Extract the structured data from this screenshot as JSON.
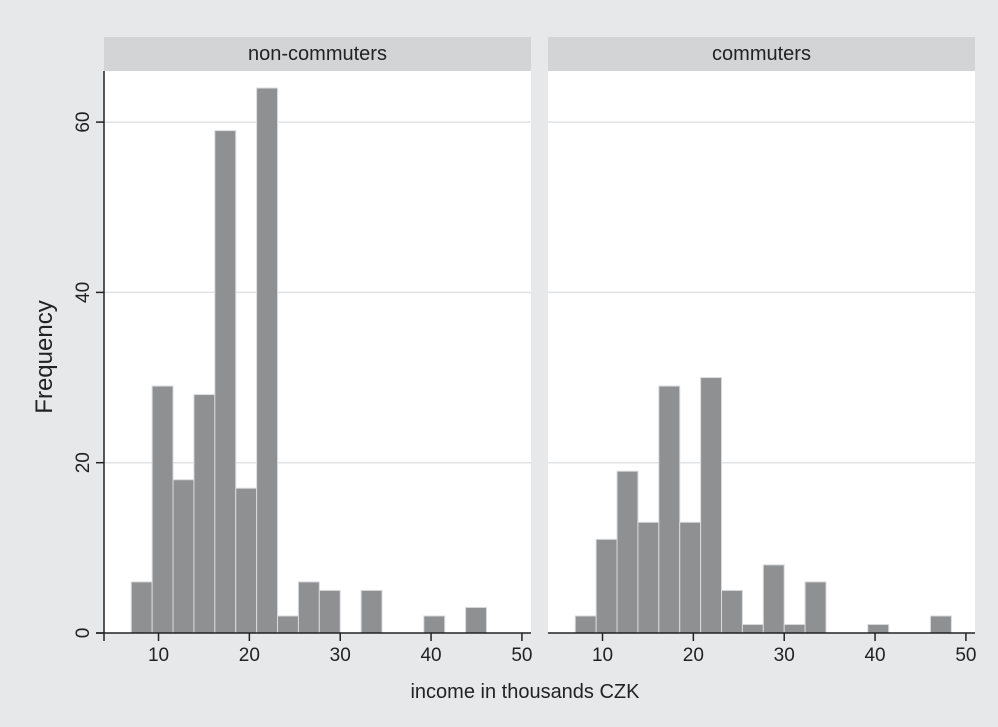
{
  "chart_data": {
    "type": "bar",
    "xlabel": "income in thousands CZK",
    "ylabel": "Frequency",
    "xlim": [
      4,
      51
    ],
    "ylim": [
      0,
      66
    ],
    "xticks": [
      10,
      20,
      30,
      40,
      50
    ],
    "yticks": [
      0,
      20,
      40,
      60
    ],
    "bin_width": 2.3,
    "grid": true,
    "colors": {
      "bar_fill": "#8f9092",
      "bar_stroke": "#d9dadc",
      "panel_bg": "#ffffff",
      "strip_bg": "#d3d4d6",
      "outer_bg": "#e7e8ea",
      "grid": "#e2e3e5",
      "axis": "#222222"
    },
    "panels": [
      {
        "name": "non-commuters",
        "bins": [
          {
            "x": 7.0,
            "y": 6
          },
          {
            "x": 9.3,
            "y": 29
          },
          {
            "x": 11.6,
            "y": 18
          },
          {
            "x": 13.9,
            "y": 28
          },
          {
            "x": 16.2,
            "y": 59
          },
          {
            "x": 18.5,
            "y": 17
          },
          {
            "x": 20.8,
            "y": 64
          },
          {
            "x": 23.1,
            "y": 2
          },
          {
            "x": 25.4,
            "y": 6
          },
          {
            "x": 27.7,
            "y": 5
          },
          {
            "x": 30.0,
            "y": 0
          },
          {
            "x": 32.3,
            "y": 5
          },
          {
            "x": 34.6,
            "y": 0
          },
          {
            "x": 36.9,
            "y": 0
          },
          {
            "x": 39.2,
            "y": 2
          },
          {
            "x": 41.5,
            "y": 0
          },
          {
            "x": 43.8,
            "y": 3
          }
        ]
      },
      {
        "name": "commuters",
        "bins": [
          {
            "x": 7.0,
            "y": 2
          },
          {
            "x": 9.3,
            "y": 11
          },
          {
            "x": 11.6,
            "y": 19
          },
          {
            "x": 13.9,
            "y": 13
          },
          {
            "x": 16.2,
            "y": 29
          },
          {
            "x": 18.5,
            "y": 13
          },
          {
            "x": 20.8,
            "y": 30
          },
          {
            "x": 23.1,
            "y": 5
          },
          {
            "x": 25.4,
            "y": 1
          },
          {
            "x": 27.7,
            "y": 8
          },
          {
            "x": 30.0,
            "y": 1
          },
          {
            "x": 32.3,
            "y": 6
          },
          {
            "x": 34.6,
            "y": 0
          },
          {
            "x": 36.9,
            "y": 0
          },
          {
            "x": 39.2,
            "y": 1
          },
          {
            "x": 41.5,
            "y": 0
          },
          {
            "x": 43.8,
            "y": 0
          },
          {
            "x": 46.1,
            "y": 2
          }
        ]
      }
    ]
  }
}
